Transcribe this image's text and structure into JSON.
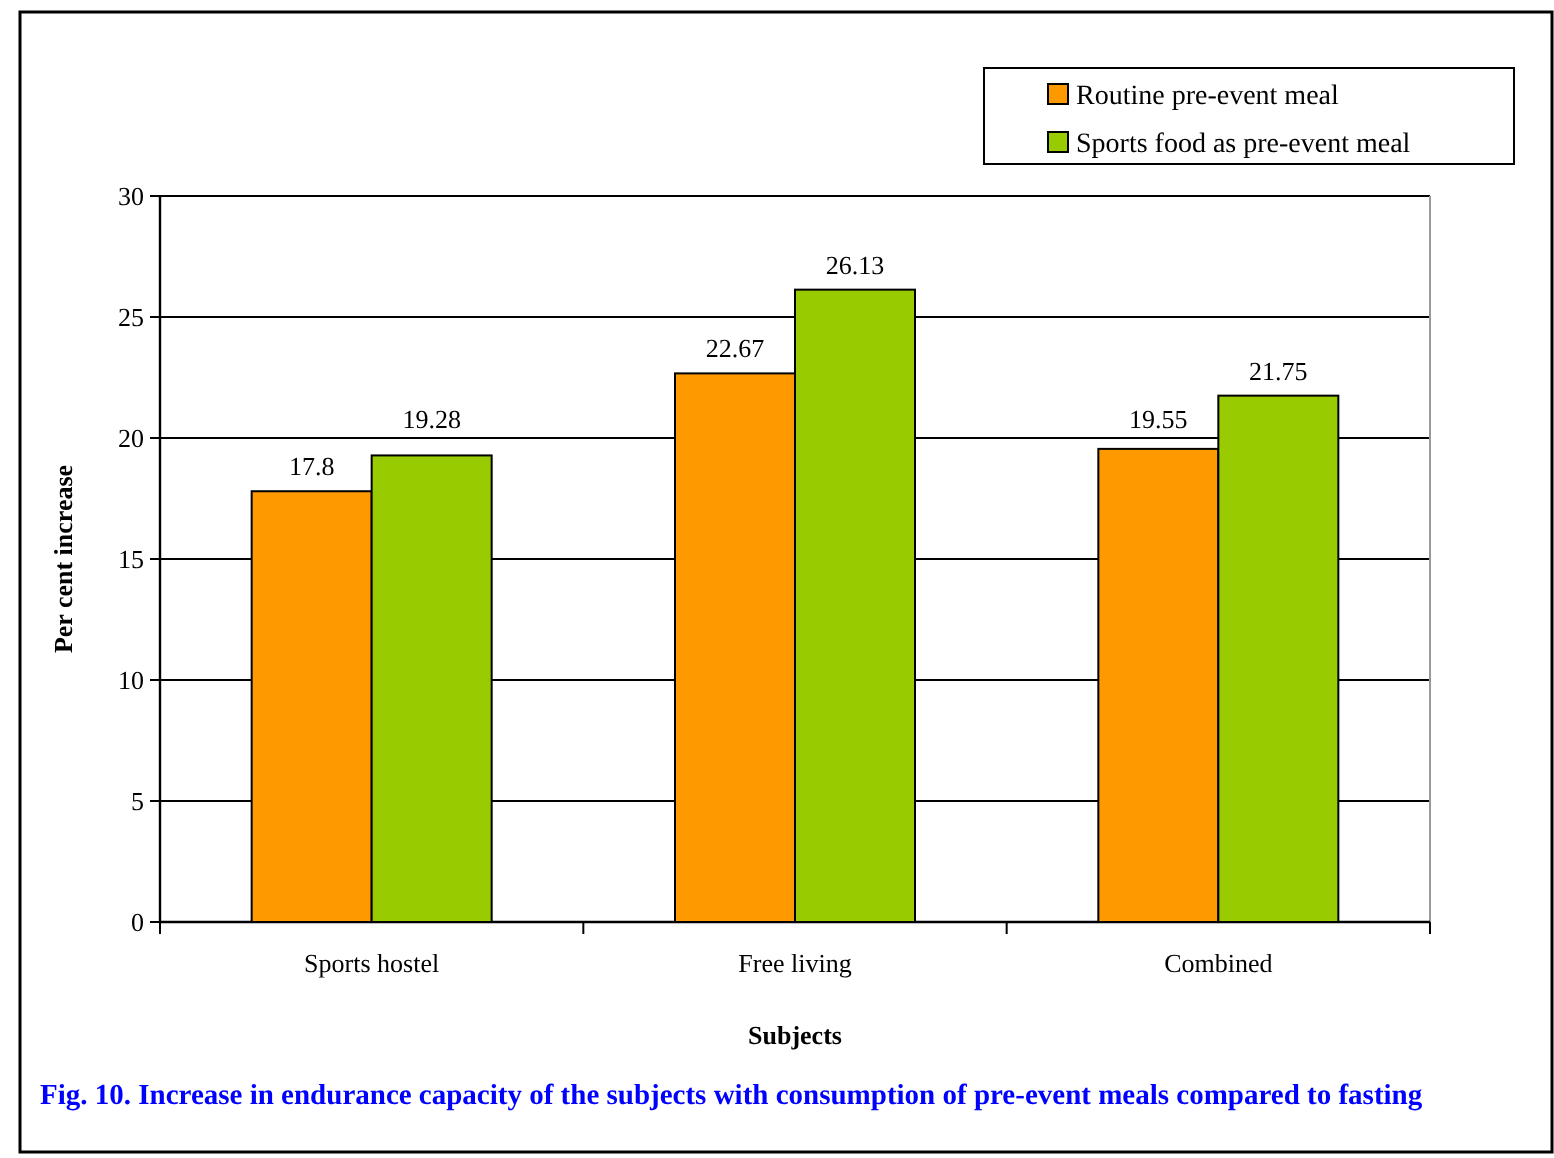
{
  "chart_data": {
    "type": "bar",
    "categories": [
      "Sports hostel",
      "Free living",
      "Combined"
    ],
    "series": [
      {
        "name": "Routine pre-event meal",
        "color": "#ff9900",
        "values": [
          17.8,
          22.67,
          19.55
        ]
      },
      {
        "name": "Sports food as pre-event meal",
        "color": "#99cc00",
        "values": [
          19.28,
          26.13,
          21.75
        ]
      }
    ],
    "xlabel": "Subjects",
    "ylabel": "Per cent increase",
    "annotations": [
      "Fig. 10. Increase in endurance capacity of the subjects with consumption of pre-event meals compared to fasting"
    ],
    "ylim": [
      0,
      30
    ],
    "yticks": [
      0,
      5,
      10,
      15,
      20,
      25,
      30
    ],
    "grid": "y",
    "legend": "top right",
    "data_labels": true
  }
}
